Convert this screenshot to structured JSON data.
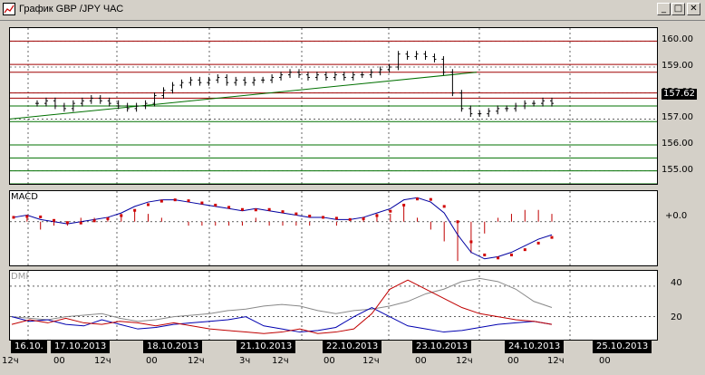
{
  "window": {
    "title": "График GBP /JPY  ЧАС",
    "minimize": "_",
    "maximize": "□",
    "close": "✕"
  },
  "price_panel": {
    "y_ticks": [
      "160.00",
      "159.00",
      "158.00",
      "157.00",
      "156.00",
      "155.00"
    ],
    "current_price": "157.62"
  },
  "macd_panel": {
    "label": "MACD",
    "zero_tick": "+0.0"
  },
  "dmi_panel": {
    "label": "DMI",
    "y_ticks": [
      "40",
      "20"
    ]
  },
  "date_labels": [
    "16.10.",
    "17.10.2013",
    "18.10.2013",
    "21.10.2013",
    "22.10.2013",
    "23.10.2013",
    "24.10.2013",
    "25.10.2013"
  ],
  "time_labels": [
    "12ч",
    "00",
    "12ч",
    "00",
    "12ч",
    "3ч",
    "12ч",
    "00",
    "12ч",
    "00",
    "12ч",
    "00",
    "12ч",
    "00"
  ],
  "chart_data": {
    "type": "line",
    "title": "График GBP /JPY  ЧАС",
    "ylim": [
      154.5,
      160.5
    ],
    "price": [
      157.6,
      157.7,
      157.5,
      157.4,
      157.6,
      157.7,
      157.8,
      157.7,
      157.6,
      157.5,
      157.4,
      157.5,
      157.6,
      157.9,
      158.1,
      158.3,
      158.4,
      158.5,
      158.4,
      158.5,
      158.6,
      158.4,
      158.5,
      158.4,
      158.5,
      158.5,
      158.6,
      158.7,
      158.8,
      158.7,
      158.6,
      158.7,
      158.6,
      158.7,
      158.6,
      158.7,
      158.7,
      158.8,
      158.9,
      159.0,
      159.5,
      159.4,
      159.5,
      159.4,
      159.3,
      158.8,
      158.0,
      157.4,
      157.2,
      157.2,
      157.3,
      157.4,
      157.4,
      157.5,
      157.6,
      157.6,
      157.7,
      157.6
    ],
    "macd": [
      0.1,
      0.15,
      0.05,
      0,
      -0.05,
      0,
      0.05,
      0.1,
      0.2,
      0.35,
      0.45,
      0.5,
      0.5,
      0.45,
      0.4,
      0.35,
      0.3,
      0.25,
      0.3,
      0.25,
      0.2,
      0.15,
      0.1,
      0.1,
      0.05,
      0.05,
      0.1,
      0.2,
      0.3,
      0.5,
      0.55,
      0.45,
      0.2,
      -0.3,
      -0.7,
      -0.85,
      -0.8,
      -0.7,
      -0.55,
      -0.4,
      -0.3
    ],
    "dmi_adx": [
      20,
      19,
      18,
      20,
      21,
      22,
      19,
      17,
      18,
      20,
      21,
      22,
      24,
      25,
      27,
      28,
      27,
      24,
      22,
      24,
      25,
      27,
      30,
      35,
      38,
      43,
      45,
      43,
      38,
      30,
      26
    ],
    "dmi_plus": [
      20,
      17,
      18,
      15,
      14,
      18,
      15,
      12,
      13,
      15,
      16,
      17,
      18,
      20,
      14,
      12,
      10,
      11,
      13,
      20,
      26,
      20,
      14,
      12,
      10,
      11,
      13,
      15,
      16,
      17,
      15
    ],
    "dmi_minus": [
      15,
      18,
      16,
      19,
      16,
      15,
      17,
      16,
      14,
      16,
      14,
      12,
      11,
      10,
      9,
      10,
      12,
      9,
      10,
      12,
      22,
      38,
      44,
      38,
      32,
      26,
      22,
      20,
      18,
      17,
      15
    ],
    "resistance_levels": [
      160.0,
      159.1,
      158.8,
      158.0,
      157.8
    ],
    "support_levels": [
      157.5,
      156.9,
      156.0,
      155.5,
      155.0,
      154.5
    ]
  }
}
